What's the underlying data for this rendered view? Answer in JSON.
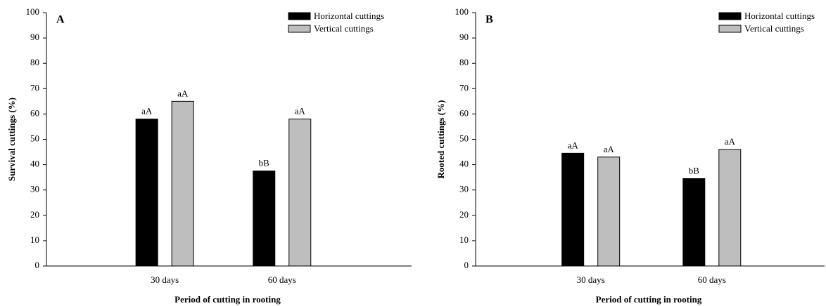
{
  "chart_data": [
    {
      "type": "bar",
      "panel_label": "A",
      "y_label": "Survival cuttings (%)",
      "x_label": "Period of cutting in rooting",
      "categories": [
        "30 days",
        "60 days"
      ],
      "series": [
        {
          "name": "Horizontal cuttings",
          "color": "#000000",
          "values": [
            58,
            37.5
          ],
          "letters": [
            "aA",
            "bB"
          ]
        },
        {
          "name": "Vertical cuttings",
          "color": "#bebebe",
          "values": [
            65,
            58
          ],
          "letters": [
            "aA",
            "aA"
          ]
        }
      ],
      "ylim": [
        0,
        100
      ],
      "yticks": [
        0,
        10,
        20,
        30,
        40,
        50,
        60,
        70,
        80,
        90,
        100
      ]
    },
    {
      "type": "bar",
      "panel_label": "B",
      "y_label": "Rooted cuttings (%)",
      "x_label": "Period of cutting in rooting",
      "categories": [
        "30 days",
        "60 days"
      ],
      "series": [
        {
          "name": "Horizontal cuttings",
          "color": "#000000",
          "values": [
            44.5,
            34.5
          ],
          "letters": [
            "aA",
            "bB"
          ]
        },
        {
          "name": "Vertical cuttings",
          "color": "#bebebe",
          "values": [
            43,
            46
          ],
          "letters": [
            "aA",
            "aA"
          ]
        }
      ],
      "ylim": [
        0,
        100
      ],
      "yticks": [
        0,
        10,
        20,
        30,
        40,
        50,
        60,
        70,
        80,
        90,
        100
      ]
    }
  ]
}
